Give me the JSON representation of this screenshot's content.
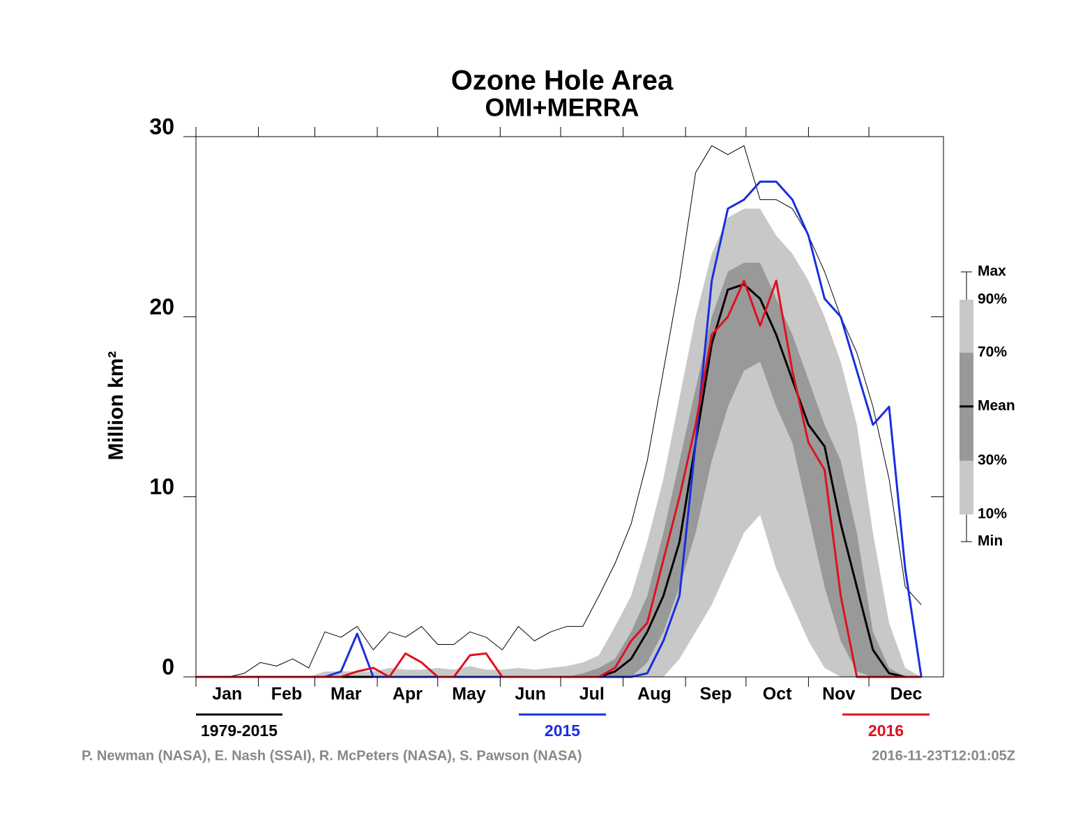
{
  "chart_data": {
    "type": "line",
    "title": "Ozone Hole Area",
    "subtitle": "OMI+MERRA",
    "y_label": "Million km²",
    "months": [
      "Jan",
      "Feb",
      "Mar",
      "Apr",
      "May",
      "Jun",
      "Jul",
      "Aug",
      "Sep",
      "Oct",
      "Nov",
      "Dec"
    ],
    "xticks": [
      1,
      32,
      60,
      91,
      121,
      152,
      182,
      213,
      244,
      274,
      305,
      335
    ],
    "xlim": [
      1,
      372
    ],
    "ylim": [
      0,
      30
    ],
    "yticks": [
      0,
      10,
      20,
      30
    ],
    "x": [
      1,
      9,
      17,
      25,
      33,
      41,
      49,
      57,
      65,
      73,
      81,
      89,
      97,
      105,
      113,
      121,
      129,
      137,
      145,
      153,
      161,
      169,
      177,
      185,
      193,
      201,
      209,
      217,
      225,
      233,
      241,
      249,
      257,
      265,
      273,
      281,
      289,
      297,
      305,
      313,
      321,
      329,
      337,
      345,
      353,
      361
    ],
    "bands": [
      {
        "name": "90%",
        "color": "#c8c8c8",
        "values": [
          0,
          0,
          0,
          0,
          0,
          0,
          0,
          0,
          0.3,
          0.3,
          0.3,
          0.3,
          0.5,
          0.4,
          0.4,
          0.5,
          0.4,
          0.6,
          0.4,
          0.4,
          0.5,
          0.4,
          0.5,
          0.6,
          0.8,
          1.2,
          2.8,
          4.5,
          7.5,
          11,
          15.5,
          20,
          23.5,
          25.5,
          26,
          26,
          24.5,
          23.5,
          22,
          20,
          17.5,
          14,
          8,
          3,
          0.5,
          0
        ]
      },
      {
        "name": "70%",
        "color": "#999999",
        "values": [
          0,
          0,
          0,
          0,
          0,
          0,
          0,
          0,
          0,
          0,
          0,
          0,
          0,
          0,
          0,
          0,
          0,
          0,
          0,
          0,
          0,
          0,
          0,
          0,
          0.2,
          0.5,
          1.0,
          2.5,
          4.5,
          8,
          12,
          16,
          20,
          22.5,
          23,
          23,
          21,
          19,
          16.5,
          14,
          12,
          8,
          2.5,
          0.5,
          0,
          0
        ]
      },
      {
        "name": "30%",
        "color": "#c8c8c8",
        "values": [
          0,
          0,
          0,
          0,
          0,
          0,
          0,
          0,
          0,
          0,
          0,
          0,
          0,
          0,
          0,
          0,
          0,
          0,
          0,
          0,
          0,
          0,
          0,
          0,
          0,
          0,
          0,
          0,
          0.8,
          2.5,
          5,
          8,
          12,
          15,
          17,
          17.5,
          15,
          13,
          9,
          5,
          2,
          0.3,
          0,
          0,
          0,
          0
        ]
      },
      {
        "name": "10%",
        "color": "#ffffff",
        "values": [
          0,
          0,
          0,
          0,
          0,
          0,
          0,
          0,
          0,
          0,
          0,
          0,
          0,
          0,
          0,
          0,
          0,
          0,
          0,
          0,
          0,
          0,
          0,
          0,
          0,
          0,
          0,
          0,
          0,
          0,
          1,
          2.5,
          4,
          6,
          8,
          9,
          6,
          4,
          2,
          0.5,
          0,
          0,
          0,
          0,
          0,
          0
        ]
      }
    ],
    "series": [
      {
        "name": "Max",
        "color": "#000000",
        "width": 1,
        "values": [
          0,
          0,
          0,
          0.2,
          0.8,
          0.6,
          1.0,
          0.5,
          2.5,
          2.2,
          2.8,
          1.5,
          2.5,
          2.2,
          2.8,
          1.8,
          1.8,
          2.5,
          2.2,
          1.5,
          2.8,
          2.0,
          2.5,
          2.8,
          2.8,
          4.5,
          6.3,
          8.5,
          12,
          17,
          22,
          28,
          29.5,
          29,
          29.5,
          26.5,
          26.5,
          26,
          24.5,
          22.5,
          20,
          18,
          15,
          11,
          5,
          4
        ]
      },
      {
        "name": "Mean",
        "color": "#000000",
        "width": 3,
        "values": [
          0,
          0,
          0,
          0,
          0,
          0,
          0,
          0,
          0,
          0,
          0,
          0,
          0,
          0,
          0,
          0,
          0,
          0,
          0,
          0,
          0,
          0,
          0,
          0,
          0,
          0,
          0.3,
          1.0,
          2.5,
          4.5,
          7.5,
          13,
          18.5,
          21.5,
          21.8,
          21,
          19,
          16.5,
          14,
          12.8,
          8.5,
          5,
          1.5,
          0.2,
          0,
          0
        ]
      },
      {
        "name": "2015",
        "color": "#1a2ee0",
        "width": 3,
        "values": [
          0,
          0,
          0,
          0,
          0,
          0,
          0,
          0,
          0,
          0.3,
          2.4,
          0,
          0,
          0,
          0,
          0,
          0,
          0,
          0,
          0,
          0,
          0,
          0,
          0,
          0,
          0,
          0,
          0,
          0.2,
          2,
          4.5,
          13,
          22,
          26,
          26.5,
          27.5,
          27.5,
          26.5,
          24.5,
          21,
          20,
          17,
          14,
          15,
          6,
          0
        ]
      },
      {
        "name": "2016",
        "color": "#e0101e",
        "width": 3,
        "values": [
          0,
          0,
          0,
          0,
          0,
          0,
          0,
          0,
          0,
          0,
          0.3,
          0.5,
          0,
          1.3,
          0.8,
          0,
          0,
          1.2,
          1.3,
          0,
          0,
          0,
          0,
          0,
          0,
          0,
          0.5,
          2,
          3,
          6.5,
          10,
          14,
          19,
          20,
          22,
          19.5,
          22,
          17,
          13,
          11.5,
          4.5,
          0,
          0,
          0,
          0,
          0
        ]
      }
    ],
    "legend_min": "Min",
    "period": "1979-2015",
    "credit": "P. Newman (NASA), E. Nash (SSAI), R. McPeters (NASA), S. Pawson (NASA)",
    "timestamp": "2016-11-23T12:01:05Z"
  }
}
